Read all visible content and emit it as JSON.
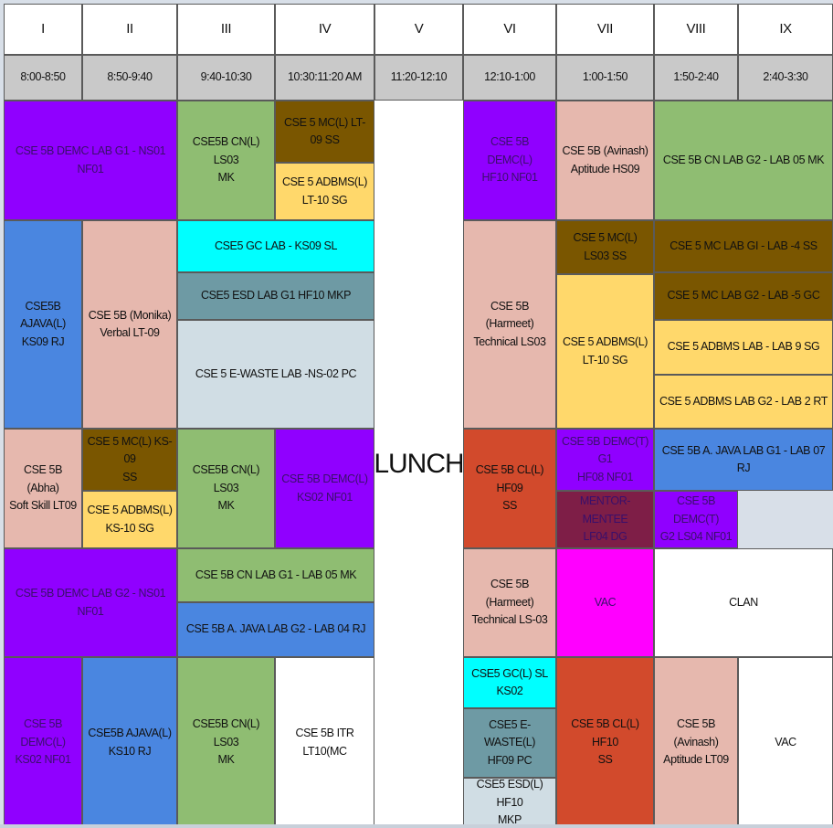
{
  "colors": {
    "purple": "#9000ff",
    "green": "#8fbd72",
    "brown": "#7a5600",
    "yellow": "#ffd86b",
    "pink": "#e6b8ae",
    "blue": "#4a86e0",
    "cyan": "#00ffff",
    "teal": "#6e9aa4",
    "lightgrey": "#d0dde4",
    "red": "#d24a2c",
    "magenta": "#ff00ff",
    "maroon": "#7e1e47",
    "white": "#ffffff",
    "header_grey": "#c9c9c9"
  },
  "periods": [
    "I",
    "II",
    "III",
    "IV",
    "V",
    "VI",
    "VII",
    "VIII",
    "IX"
  ],
  "times": [
    "8:00-8:50",
    "8:50-9:40",
    "9:40-10:30",
    "10:30:11:20 AM",
    "11:20-12:10",
    "12:10-1:00",
    "1:00-1:50",
    "1:50-2:40",
    "2:40-3:30"
  ],
  "lunch_label": "LUNCH",
  "cells": [
    {
      "id": "r1-demc-lab-g1",
      "text": "CSE 5B DEMC LAB G1 - NS01  NF01",
      "color": "purple",
      "dim": true
    },
    {
      "id": "r1-cn-l",
      "text": "CSE5B CN(L) LS03\nMK",
      "color": "green"
    },
    {
      "id": "r1-mc-l",
      "text": "CSE 5 MC(L) LT-09 SS",
      "color": "brown"
    },
    {
      "id": "r1-adbms-l",
      "text": "CSE 5 ADBMS(L)\nLT-10 SG",
      "color": "yellow"
    },
    {
      "id": "r1-demc-l",
      "text": "CSE 5B DEMC(L)\nHF10 NF01",
      "color": "purple",
      "dim": true
    },
    {
      "id": "r1-aptitude",
      "text": "CSE 5B (Avinash)\nAptitude HS09",
      "color": "pink"
    },
    {
      "id": "r1-cn-lab-g2",
      "text": "CSE 5B CN LAB G2 - LAB 05 MK",
      "color": "green"
    },
    {
      "id": "r2-ajava-l",
      "text": "CSE5B AJAVA(L)\nKS09 RJ",
      "color": "blue"
    },
    {
      "id": "r2-verbal",
      "text": "CSE 5B (Monika)\nVerbal  LT-09",
      "color": "pink"
    },
    {
      "id": "r2-gc-lab",
      "text": "CSE5 GC LAB - KS09 SL",
      "color": "cyan"
    },
    {
      "id": "r2-esd-lab",
      "text": "CSE5 ESD LAB G1 HF10 MKP",
      "color": "teal"
    },
    {
      "id": "r2-ewaste-lab",
      "text": "CSE 5 E-WASTE LAB -NS-02 PC",
      "color": "lightgrey"
    },
    {
      "id": "r2-technical",
      "text": "CSE 5B (Harmeet)\nTechnical LS03",
      "color": "pink"
    },
    {
      "id": "r2-mc-l",
      "text": "CSE 5 MC(L) LS03 SS",
      "color": "brown"
    },
    {
      "id": "r2-adbms-l",
      "text": "CSE 5 ADBMS(L)\nLT-10 SG",
      "color": "yellow"
    },
    {
      "id": "r2-mc-lab-g1",
      "text": "CSE 5 MC LAB GI - LAB -4 SS",
      "color": "brown"
    },
    {
      "id": "r2-mc-lab-g2",
      "text": "CSE 5 MC LAB G2 - LAB -5 GC",
      "color": "brown"
    },
    {
      "id": "r2-adbms-lab",
      "text": "CSE 5 ADBMS LAB - LAB 9 SG",
      "color": "yellow"
    },
    {
      "id": "r2-adbms-lab-g2",
      "text": "CSE 5 ADBMS LAB G2 - LAB 2 RT",
      "color": "yellow"
    },
    {
      "id": "r3-softskill",
      "text": "CSE 5B (Abha)\nSoft Skill LT09",
      "color": "pink"
    },
    {
      "id": "r3-mc-l",
      "text": "CSE 5 MC(L) KS-09\nSS",
      "color": "brown"
    },
    {
      "id": "r3-adbms-l",
      "text": "CSE 5 ADBMS(L)\nKS-10 SG",
      "color": "yellow"
    },
    {
      "id": "r3-cn-l",
      "text": "CSE5B CN(L) LS03\nMK",
      "color": "green"
    },
    {
      "id": "r3-demc-l",
      "text": "CSE 5B DEMC(L)\nKS02 NF01",
      "color": "purple",
      "dim": true
    },
    {
      "id": "r3-cl-l",
      "text": "CSE 5B CL(L) HF09\nSS",
      "color": "red"
    },
    {
      "id": "r3-demc-t-g1",
      "text": "CSE 5B DEMC(T) G1\nHF08 NF01",
      "color": "purple",
      "dim": true
    },
    {
      "id": "r3-ajava-lab-g1",
      "text": "CSE 5B A. JAVA LAB G1 - LAB 07 RJ",
      "color": "blue"
    },
    {
      "id": "r3-mentor",
      "text": "MENTOR-MENTEE\nLF04 DG",
      "color": "maroon",
      "dim": true
    },
    {
      "id": "r3-demc-t-g2",
      "text": "CSE 5B DEMC(T)\nG2 LS04 NF01",
      "color": "purple",
      "dim": true
    },
    {
      "id": "r4-demc-lab-g2",
      "text": "CSE 5B DEMC LAB G2 - NS01  NF01",
      "color": "purple",
      "dim": true
    },
    {
      "id": "r4-cn-lab-g1",
      "text": "CSE 5B CN LAB G1 - LAB 05 MK",
      "color": "green"
    },
    {
      "id": "r4-ajava-lab-g2",
      "text": "CSE 5B A. JAVA LAB G2 - LAB 04 RJ",
      "color": "blue"
    },
    {
      "id": "r4-technical",
      "text": "CSE 5B (Harmeet)\nTechnical  LS-03",
      "color": "pink"
    },
    {
      "id": "r4-vac",
      "text": "VAC",
      "color": "magenta",
      "dim": true
    },
    {
      "id": "r4-clan",
      "text": "CLAN",
      "color": "white"
    },
    {
      "id": "r5-demc-l",
      "text": "CSE 5B DEMC(L)\nKS02 NF01",
      "color": "purple",
      "dim": true
    },
    {
      "id": "r5-ajava-l",
      "text": "CSE5B AJAVA(L)\nKS10 RJ",
      "color": "blue"
    },
    {
      "id": "r5-cn-l",
      "text": "CSE5B CN(L) LS03\nMK",
      "color": "green"
    },
    {
      "id": "r5-itr",
      "text": "CSE 5B ITR LT10(MC",
      "color": "white"
    },
    {
      "id": "r5-gc-l",
      "text": "CSE5 GC(L) SL KS02",
      "color": "cyan"
    },
    {
      "id": "r5-ewaste-l",
      "text": "CSE5 E-WASTE(L)\nHF09 PC",
      "color": "teal"
    },
    {
      "id": "r5-esd-l",
      "text": "CSE5 ESD(L)  HF10\nMKP",
      "color": "lightgrey"
    },
    {
      "id": "r5-cl-l",
      "text": "CSE 5B CL(L) HF10\nSS",
      "color": "red"
    },
    {
      "id": "r5-aptitude",
      "text": "CSE 5B (Avinash)\nAptitude LT09",
      "color": "pink"
    },
    {
      "id": "r5-vac",
      "text": "VAC",
      "color": "white"
    }
  ]
}
